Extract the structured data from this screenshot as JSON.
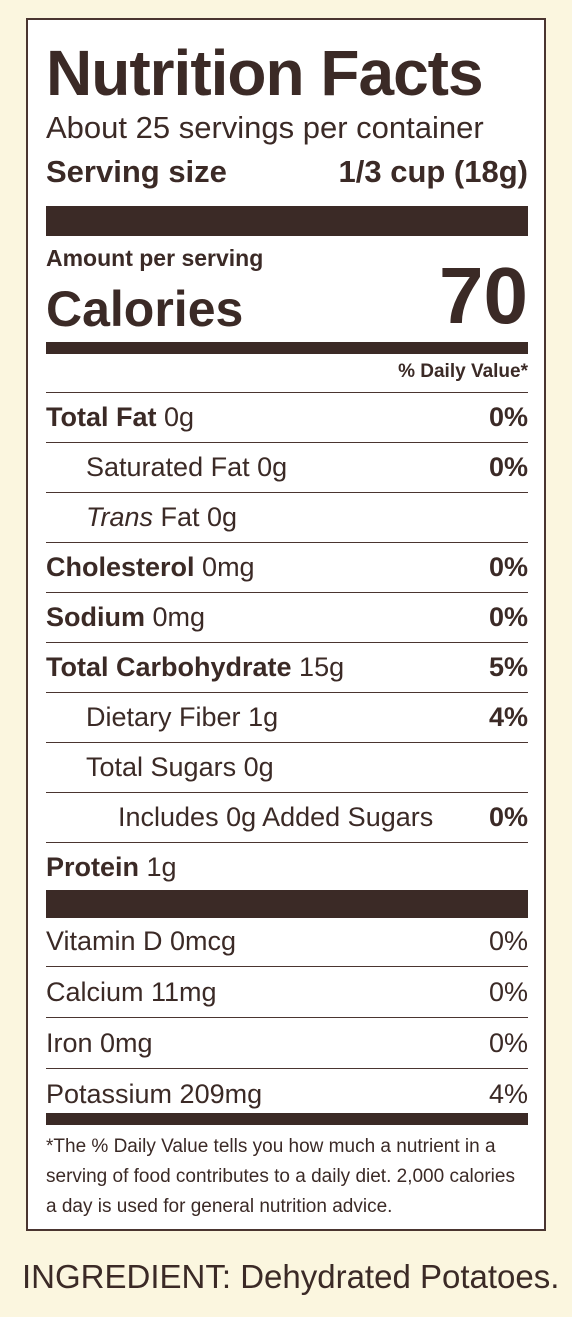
{
  "label": {
    "title": "Nutrition Facts",
    "servings_per_container": "About 25 servings per container",
    "serving_size_label": "Serving size",
    "serving_size_value": "1/3 cup (18g)",
    "amount_per_serving": "Amount per serving",
    "calories_label": "Calories",
    "calories_value": "70",
    "daily_value_header": "% Daily Value*",
    "nutrients": [
      {
        "name": "Total Fat",
        "amount": "0g",
        "dv": "0%"
      },
      {
        "name": "Saturated Fat",
        "amount": "0g",
        "dv": "0%"
      },
      {
        "name": "Trans",
        "name_suffix": "Fat 0g",
        "dv": ""
      },
      {
        "name": "Cholesterol",
        "amount": "0mg",
        "dv": "0%"
      },
      {
        "name": "Sodium",
        "amount": "0mg",
        "dv": "0%"
      },
      {
        "name": "Total Carbohydrate",
        "amount": "15g",
        "dv": "5%"
      },
      {
        "name": "Dietary Fiber",
        "amount": "1g",
        "dv": "4%"
      },
      {
        "name": "Total Sugars",
        "amount": "0g",
        "dv": ""
      },
      {
        "name": "Includes 0g Added Sugars",
        "dv": "0%"
      }
    ],
    "protein": {
      "name": "Protein",
      "amount": "1g"
    },
    "vitamins": [
      {
        "text": "Vitamin D 0mcg",
        "dv": "0%"
      },
      {
        "text": "Calcium 11mg",
        "dv": "0%"
      },
      {
        "text": "Iron 0mg",
        "dv": "0%"
      },
      {
        "text": "Potassium 209mg",
        "dv": "4%"
      }
    ],
    "footnote": "*The % Daily Value tells you how much a nutrient in a serving of food contributes to a daily diet. 2,000 calories a day is used for general nutrition advice."
  },
  "ingredient": "INGREDIENT: Dehydrated Potatoes.",
  "colors": {
    "text": "#3b2a26",
    "background": "#fbf6df",
    "label_background": "#ffffff"
  }
}
